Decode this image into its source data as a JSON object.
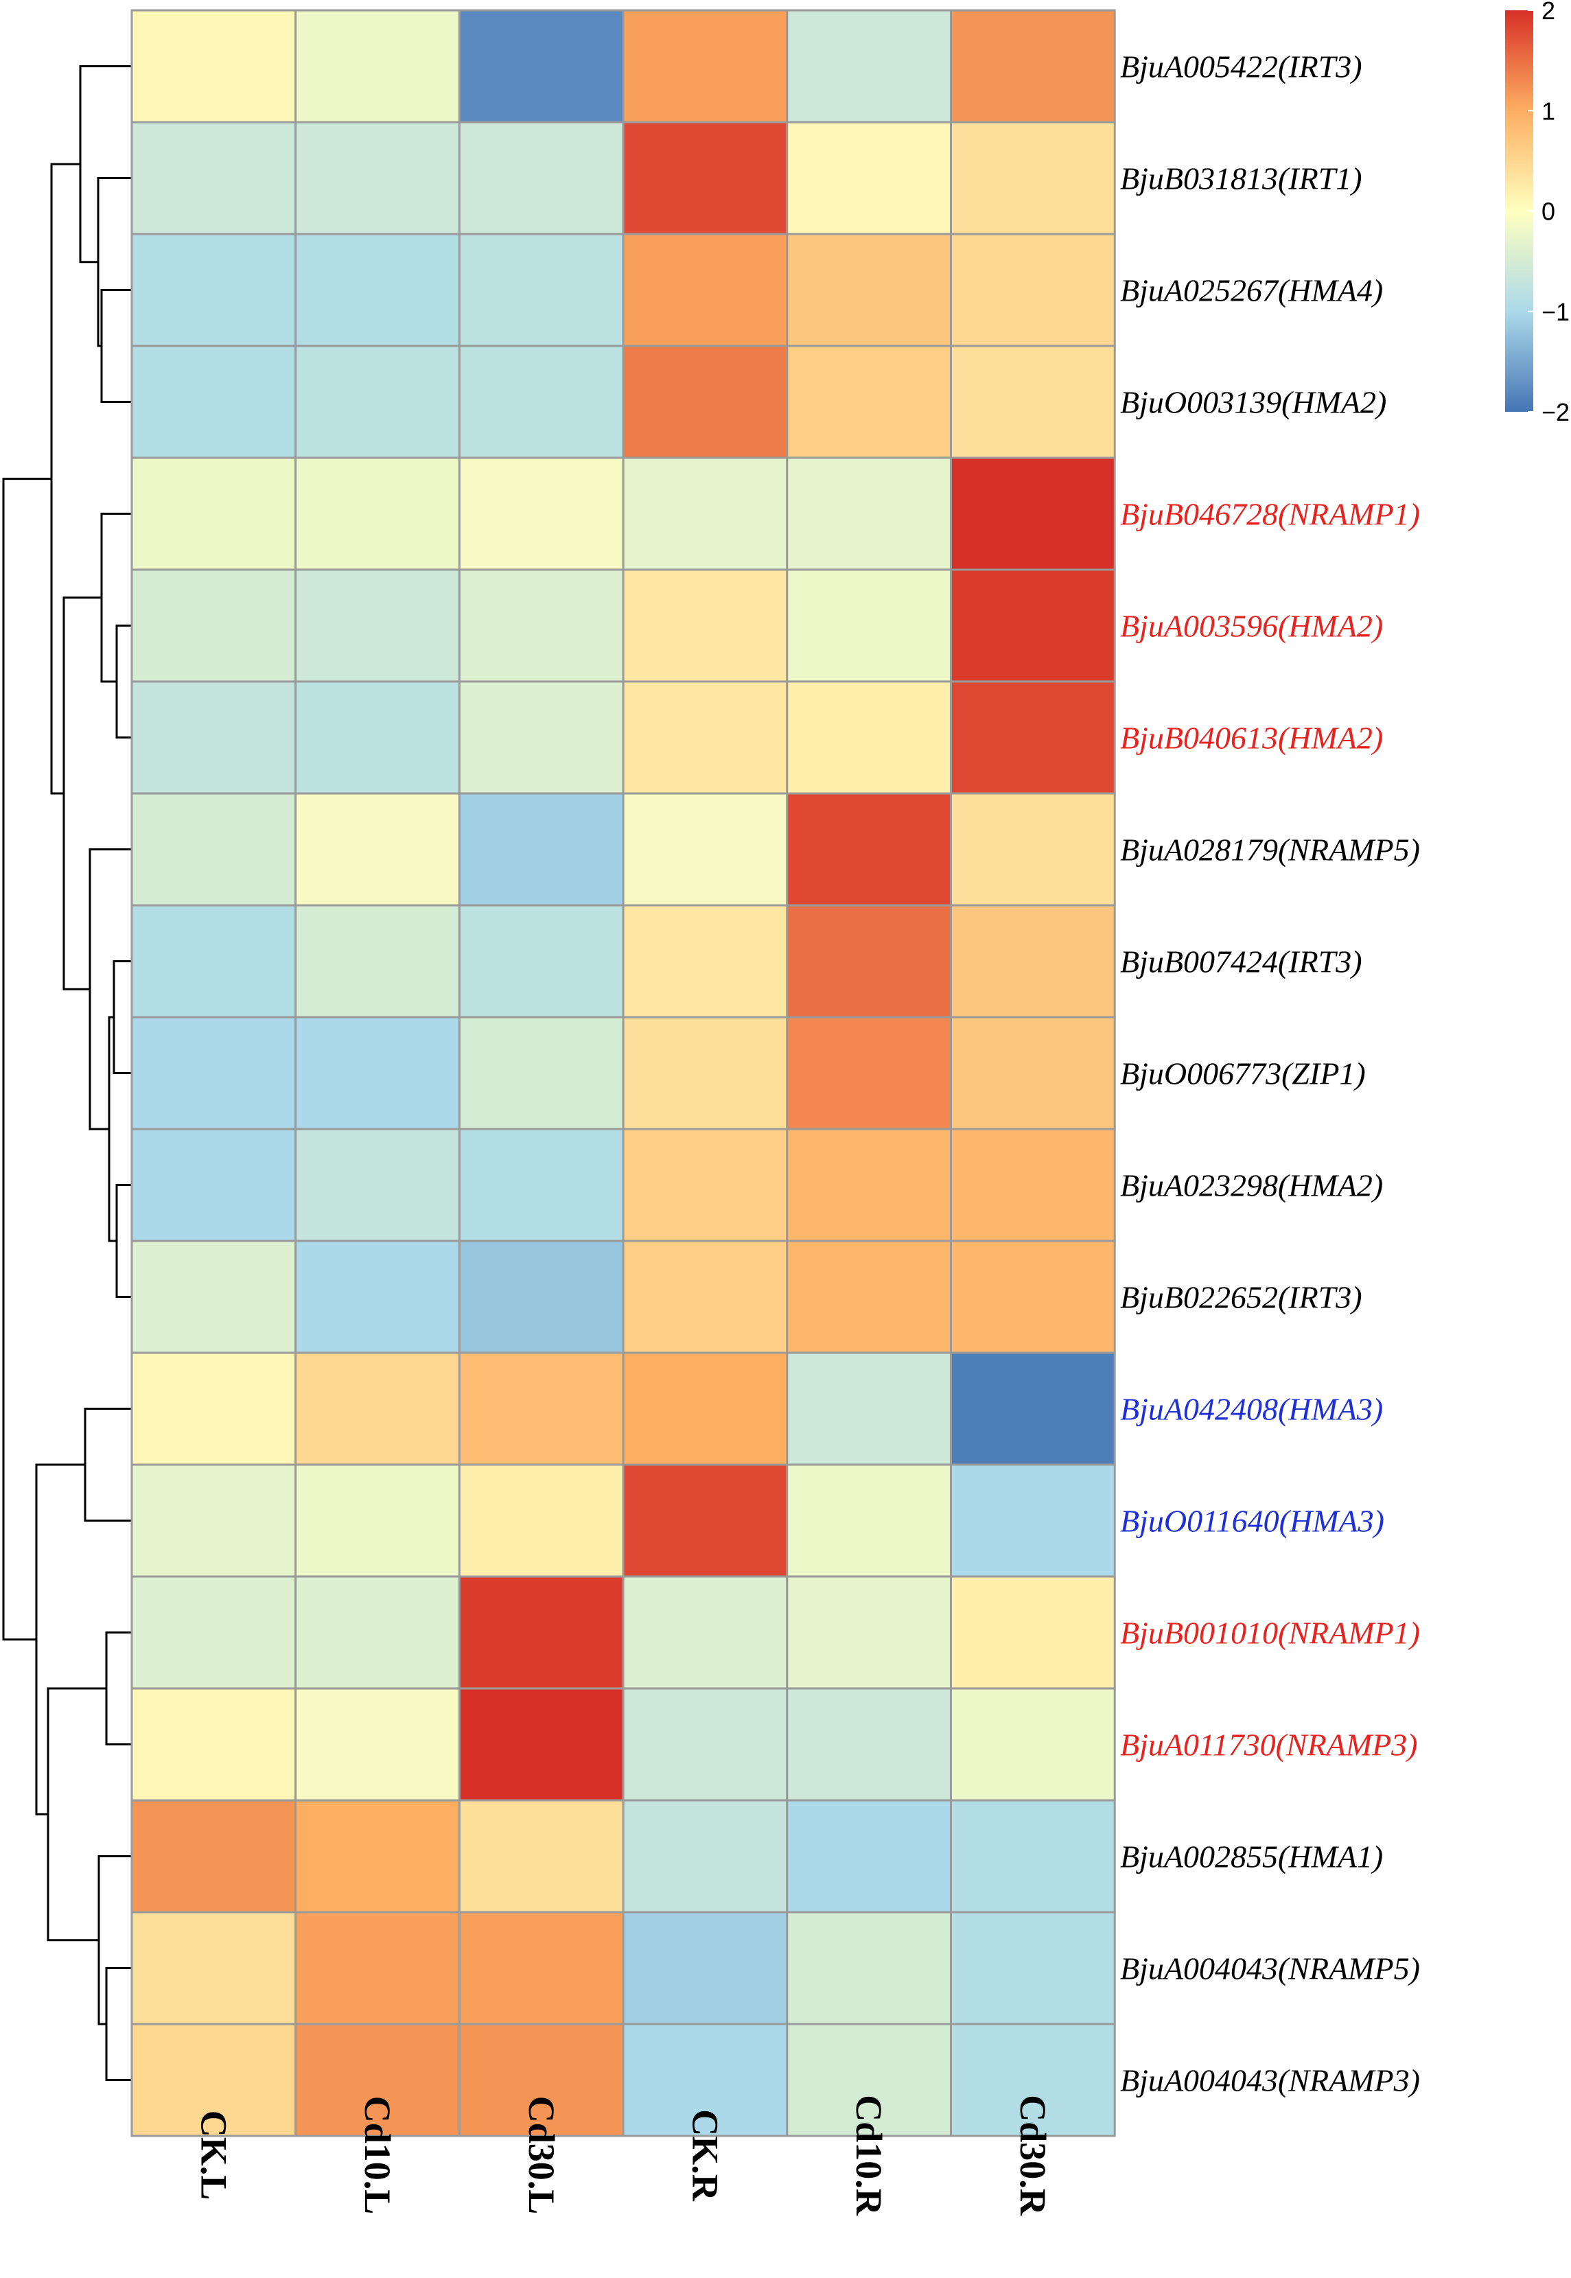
{
  "chart_data": {
    "type": "heatmap",
    "title": "",
    "columns": [
      "CK.L",
      "Cd10.L",
      "Cd30.L",
      "CK.R",
      "Cd10.R",
      "Cd30.R"
    ],
    "rows": [
      {
        "label": "BjuA005422(IRT3)",
        "color": "#000000",
        "values": [
          0.1,
          -0.2,
          -1.8,
          1.1,
          -0.6,
          1.2
        ]
      },
      {
        "label": "BjuB031813(IRT1)",
        "color": "#000000",
        "values": [
          -0.6,
          -0.6,
          -0.6,
          1.8,
          0.1,
          0.4
        ]
      },
      {
        "label": "BjuA025267(HMA4)",
        "color": "#000000",
        "values": [
          -0.9,
          -0.9,
          -0.8,
          1.1,
          0.7,
          0.5
        ]
      },
      {
        "label": "BjuO003139(HMA2)",
        "color": "#000000",
        "values": [
          -0.9,
          -0.8,
          -0.8,
          1.4,
          0.6,
          0.4
        ]
      },
      {
        "label": "BjuB046728(NRAMP1)",
        "color": "#e8231f",
        "values": [
          -0.2,
          -0.2,
          -0.1,
          -0.3,
          -0.3,
          2.0
        ]
      },
      {
        "label": "BjuA003596(HMA2)",
        "color": "#e8231f",
        "values": [
          -0.5,
          -0.6,
          -0.4,
          0.3,
          -0.2,
          1.9
        ]
      },
      {
        "label": "BjuB040613(HMA2)",
        "color": "#e8231f",
        "values": [
          -0.7,
          -0.8,
          -0.4,
          0.3,
          0.2,
          1.8
        ]
      },
      {
        "label": "BjuA028179(NRAMP5)",
        "color": "#000000",
        "values": [
          -0.5,
          -0.1,
          -1.1,
          -0.1,
          1.8,
          0.4
        ]
      },
      {
        "label": "BjuB007424(IRT3)",
        "color": "#000000",
        "values": [
          -0.9,
          -0.5,
          -0.8,
          0.3,
          1.5,
          0.7
        ]
      },
      {
        "label": "BjuO006773(ZIP1)",
        "color": "#000000",
        "values": [
          -1.0,
          -1.0,
          -0.5,
          0.4,
          1.3,
          0.7
        ]
      },
      {
        "label": "BjuA023298(HMA2)",
        "color": "#000000",
        "values": [
          -1.0,
          -0.7,
          -0.9,
          0.6,
          0.9,
          0.9
        ]
      },
      {
        "label": "BjuB022652(IRT3)",
        "color": "#000000",
        "values": [
          -0.4,
          -1.0,
          -1.2,
          0.6,
          0.9,
          0.9
        ]
      },
      {
        "label": "BjuA042408(HMA3)",
        "color": "#1f2fd8",
        "values": [
          0.1,
          0.5,
          0.8,
          1.0,
          -0.6,
          -1.9
        ]
      },
      {
        "label": "BjuO011640(HMA3)",
        "color": "#1f2fd8",
        "values": [
          -0.3,
          -0.2,
          0.2,
          1.8,
          -0.2,
          -1.0
        ]
      },
      {
        "label": "BjuB001010(NRAMP1)",
        "color": "#e8231f",
        "values": [
          -0.4,
          -0.4,
          1.9,
          -0.4,
          -0.3,
          0.2
        ]
      },
      {
        "label": "BjuA011730(NRAMP3)",
        "color": "#e8231f",
        "values": [
          0.1,
          -0.1,
          2.0,
          -0.6,
          -0.6,
          -0.2
        ]
      },
      {
        "label": "BjuA002855(HMA1)",
        "color": "#000000",
        "values": [
          1.2,
          1.0,
          0.4,
          -0.7,
          -1.0,
          -0.9
        ]
      },
      {
        "label": "BjuA004043(NRAMP5)",
        "color": "#000000",
        "values": [
          0.4,
          1.1,
          1.1,
          -1.1,
          -0.5,
          -0.9
        ]
      },
      {
        "label": "BjuA004043(NRAMP3)",
        "color": "#000000",
        "values": [
          0.5,
          1.2,
          1.2,
          -1.0,
          -0.5,
          -0.9
        ]
      }
    ],
    "scale": {
      "min": -2,
      "max": 2,
      "ticks": [
        {
          "value": 2,
          "label": "2"
        },
        {
          "value": 1,
          "label": "1"
        },
        {
          "value": 0,
          "label": "0"
        },
        {
          "value": -1,
          "label": "−1"
        },
        {
          "value": -2,
          "label": "−2"
        }
      ],
      "stops": [
        {
          "value": -2,
          "color": "#4575b4"
        },
        {
          "value": -1,
          "color": "#abd9e9"
        },
        {
          "value": 0,
          "color": "#ffffbf"
        },
        {
          "value": 1,
          "color": "#fdae61"
        },
        {
          "value": 2,
          "color": "#d73027"
        }
      ]
    },
    "cell_border_color": "#9a9a9a",
    "dendrogram_color": "#000000",
    "legend_position": "top-right"
  }
}
